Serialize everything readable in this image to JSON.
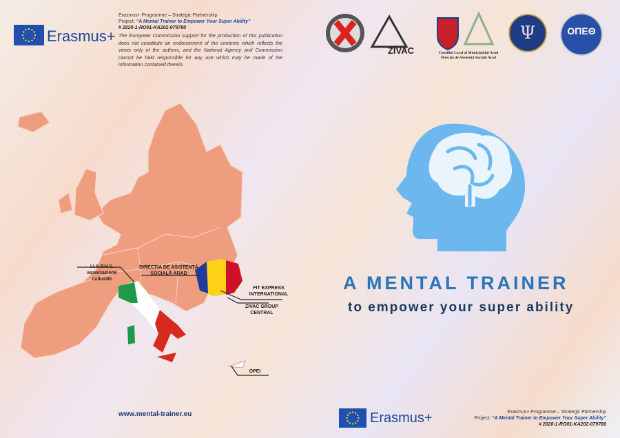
{
  "header": {
    "logo_text": "Erasmus+",
    "programme": "Erasmus+ Programme – Strategic Partnership",
    "project_label": "Project:",
    "project_title": "“A Mental Trainer to Empower Your Super Ability”",
    "project_code": "# 2020-1-RO01-KA202-079780",
    "disclaimer": "The European Commission support for the production of this publication does not constitute an endorsement of the contents which reflects the views only of the authors, and the National Agency and Commission cannot be held responsible for any use which may be made of the information contained therein."
  },
  "partner_logos": {
    "zivac": "ZIVAC",
    "arad_line1": "Consiliul Local al Municipiului Arad",
    "arad_line2": "Direcția de Asistență Socială Arad",
    "opeth": "ΟΠΕΘ"
  },
  "map_labels": [
    {
      "lines": [
        "I.I.A.P.H.S.",
        "associazione",
        "culturale"
      ]
    },
    {
      "lines": [
        "DIRECȚIA DE ASISTENȚĂ",
        "SOCIALĂ ARAD"
      ]
    },
    {
      "lines": [
        "FIT EXPRESS",
        "INTERNATIONAL"
      ]
    },
    {
      "lines": [
        "ZIVAC GROUP",
        "CENTRAL"
      ]
    },
    {
      "lines": [
        "OPEI"
      ]
    }
  ],
  "title": "A MENTAL TRAINER",
  "subtitle": "to empower your super ability",
  "footer": {
    "website": "www.mental-trainer.eu",
    "logo_text": "Erasmus+",
    "programme": "Erasmus+ Programme – Strategic Partnership",
    "project_label": "Project:",
    "project_title": "“A Mental Trainer to Empower Your Super Ability”",
    "project_code": "# 2020-1-RO01-KA202-079780"
  }
}
